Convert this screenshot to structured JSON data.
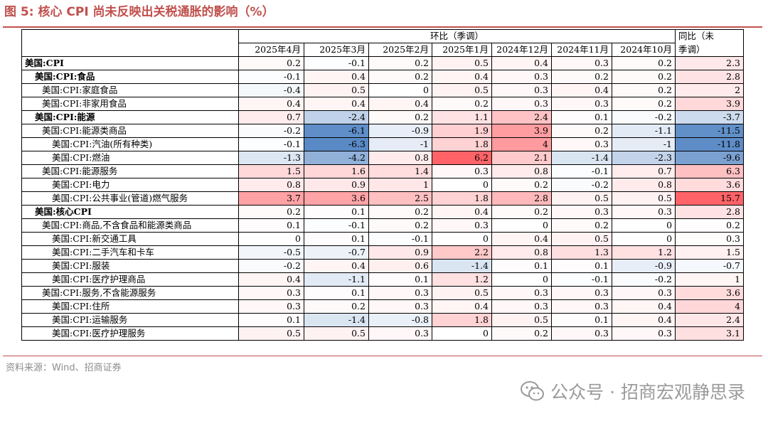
{
  "title": "图 5:  核心 CPI 尚未反映出关税通胀的影响（%）",
  "header": {
    "group_mom": "环比（季调）",
    "group_yoy_line1": "同比（未",
    "group_yoy_line2": "季调）",
    "months": [
      "2025年4月",
      "2025年3月",
      "2025年2月",
      "2025年1月",
      "2024年12月",
      "2024年11月",
      "2024年10月"
    ]
  },
  "rows": [
    {
      "label": "美国:CPI",
      "level": 1,
      "bold": true,
      "values": [
        "0.2",
        "-0.1",
        "0.2",
        "0.5",
        "0.4",
        "0.3",
        "0.2"
      ],
      "yoy": "2.3"
    },
    {
      "label": "美国:CPI:食品",
      "level": 2,
      "bold": true,
      "values": [
        "-0.1",
        "0.4",
        "0.2",
        "0.4",
        "0.3",
        "0.2",
        "0.2"
      ],
      "yoy": "2.8"
    },
    {
      "label": "美国:CPI:家庭食品",
      "level": 3,
      "bold": false,
      "values": [
        "-0.4",
        "0.5",
        "0",
        "0.5",
        "0.3",
        "0.4",
        "0.2"
      ],
      "yoy": "2"
    },
    {
      "label": "美国:CPI:非家用食品",
      "level": 3,
      "bold": false,
      "values": [
        "0.4",
        "0.4",
        "0.4",
        "0.2",
        "0.3",
        "0.3",
        "0.2"
      ],
      "yoy": "3.9"
    },
    {
      "label": "美国:CPI:能源",
      "level": 2,
      "bold": true,
      "values": [
        "0.7",
        "-2.4",
        "0.2",
        "1.1",
        "2.4",
        "0.1",
        "-0.2"
      ],
      "yoy": "-3.7"
    },
    {
      "label": "美国:CPI:能源类商品",
      "level": 3,
      "bold": false,
      "values": [
        "-0.2",
        "-6.1",
        "-0.9",
        "1.9",
        "3.9",
        "0.2",
        "-1.1"
      ],
      "yoy": "-11.5"
    },
    {
      "label": "美国:CPI:汽油(所有种类)",
      "level": 4,
      "bold": false,
      "values": [
        "-0.1",
        "-6.3",
        "-1",
        "1.8",
        "4",
        "0.3",
        "-1"
      ],
      "yoy": "-11.8"
    },
    {
      "label": "美国:CPI:燃油",
      "level": 4,
      "bold": false,
      "values": [
        "-1.3",
        "-4.2",
        "0.8",
        "6.2",
        "2.1",
        "-1.4",
        "-2.3"
      ],
      "yoy": "-9.6"
    },
    {
      "label": "美国:CPI:能源服务",
      "level": 3,
      "bold": false,
      "values": [
        "1.5",
        "1.6",
        "1.4",
        "0.3",
        "0.8",
        "-0.1",
        "0.7"
      ],
      "yoy": "6.3"
    },
    {
      "label": "美国:CPI:电力",
      "level": 4,
      "bold": false,
      "values": [
        "0.8",
        "0.9",
        "1",
        "0",
        "0.2",
        "-0.2",
        "0.8"
      ],
      "yoy": "3.6"
    },
    {
      "label": "美国:CPI:公共事业(管道)燃气服务",
      "level": 4,
      "bold": false,
      "values": [
        "3.7",
        "3.6",
        "2.5",
        "1.8",
        "2.8",
        "0.5",
        "0.5"
      ],
      "yoy": "15.7"
    },
    {
      "label": "美国:核心CPI",
      "level": 2,
      "bold": true,
      "values": [
        "0.2",
        "0.1",
        "0.2",
        "0.4",
        "0.2",
        "0.3",
        "0.3"
      ],
      "yoy": "2.8"
    },
    {
      "label": "美国:CPI:商品,不含食品和能源类商品",
      "level": 3,
      "bold": false,
      "values": [
        "0.1",
        "-0.1",
        "0.2",
        "0.3",
        "0",
        "0.2",
        "0"
      ],
      "yoy": "0.2"
    },
    {
      "label": "美国:CPI:新交通工具",
      "level": 4,
      "bold": false,
      "values": [
        "0",
        "0.1",
        "-0.1",
        "0",
        "0.4",
        "0.5",
        "0"
      ],
      "yoy": "0.3"
    },
    {
      "label": "美国:CPI:二手汽车和卡车",
      "level": 4,
      "bold": false,
      "values": [
        "-0.5",
        "-0.7",
        "0.9",
        "2.2",
        "0.8",
        "1.3",
        "1.2"
      ],
      "yoy": "1.5"
    },
    {
      "label": "美国:CPI:服装",
      "level": 4,
      "bold": false,
      "values": [
        "-0.2",
        "0.4",
        "0.6",
        "-1.4",
        "0.1",
        "0.1",
        "-0.9"
      ],
      "yoy": "-0.7"
    },
    {
      "label": "美国:CPI:医疗护理商品",
      "level": 4,
      "bold": false,
      "values": [
        "0.4",
        "-1.1",
        "0.1",
        "1.2",
        "0",
        "-0.1",
        "-0.2"
      ],
      "yoy": "1"
    },
    {
      "label": "美国:CPI:服务,不含能源服务",
      "level": 3,
      "bold": false,
      "values": [
        "0.3",
        "0.1",
        "0.3",
        "0.5",
        "0.3",
        "0.3",
        "0.3"
      ],
      "yoy": "3.6"
    },
    {
      "label": "美国:CPI:住所",
      "level": 4,
      "bold": false,
      "values": [
        "0.3",
        "0.2",
        "0.3",
        "0.4",
        "0.3",
        "0.3",
        "0.4"
      ],
      "yoy": "4"
    },
    {
      "label": "美国:CPI:运输服务",
      "level": 4,
      "bold": false,
      "values": [
        "0.1",
        "-1.4",
        "-0.8",
        "1.8",
        "0.5",
        "0.1",
        "0.4"
      ],
      "yoy": "2.4"
    },
    {
      "label": "美国:CPI:医疗护理服务",
      "level": 4,
      "bold": false,
      "values": [
        "0.5",
        "0.5",
        "0.3",
        "0",
        "0.2",
        "0.3",
        "0.3"
      ],
      "yoy": "3.1"
    }
  ],
  "source": "资料来源：Wind、招商证券",
  "watermark": "公众号 · 招商宏观静思录"
}
